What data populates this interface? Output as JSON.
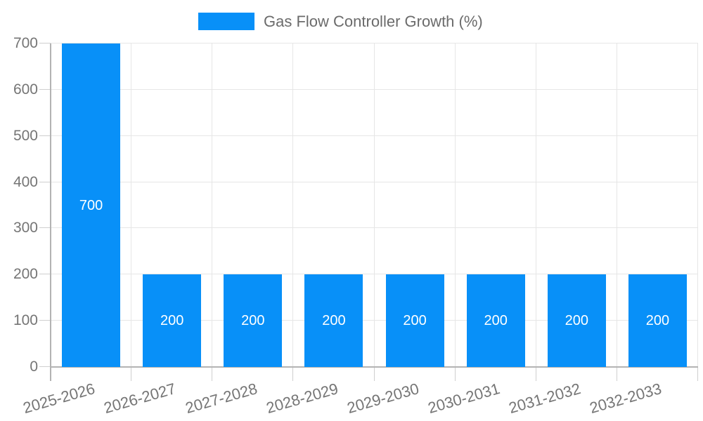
{
  "legend": {
    "label": "Gas Flow Controller Growth (%)"
  },
  "chart_data": {
    "type": "bar",
    "title": "Gas Flow Controller Growth (%)",
    "categories": [
      "2025-2026",
      "2026-2027",
      "2027-2028",
      "2028-2029",
      "2029-2030",
      "2030-2031",
      "2031-2032",
      "2032-2033"
    ],
    "values": [
      700,
      200,
      200,
      200,
      200,
      200,
      200,
      200
    ],
    "bar_value_labels": [
      "700",
      "200",
      "200",
      "200",
      "200",
      "200",
      "200",
      "200"
    ],
    "xlabel": "",
    "ylabel": "",
    "ylim": [
      0,
      700
    ],
    "yticks": [
      0,
      100,
      200,
      300,
      400,
      500,
      600,
      700
    ],
    "ytick_labels": [
      "0",
      "100",
      "200",
      "300",
      "400",
      "500",
      "600",
      "700"
    ],
    "grid": true,
    "legend_position": "top-center",
    "colors": {
      "bar": "#0890F8",
      "bar_value_label": "#ffffff",
      "axis_text": "#757575",
      "legend_text": "#6b6b6b",
      "gridline": "#e6e6e6",
      "tick": "#cfcfcf",
      "axis_line": "#b3b3b3",
      "background": "#ffffff"
    }
  }
}
